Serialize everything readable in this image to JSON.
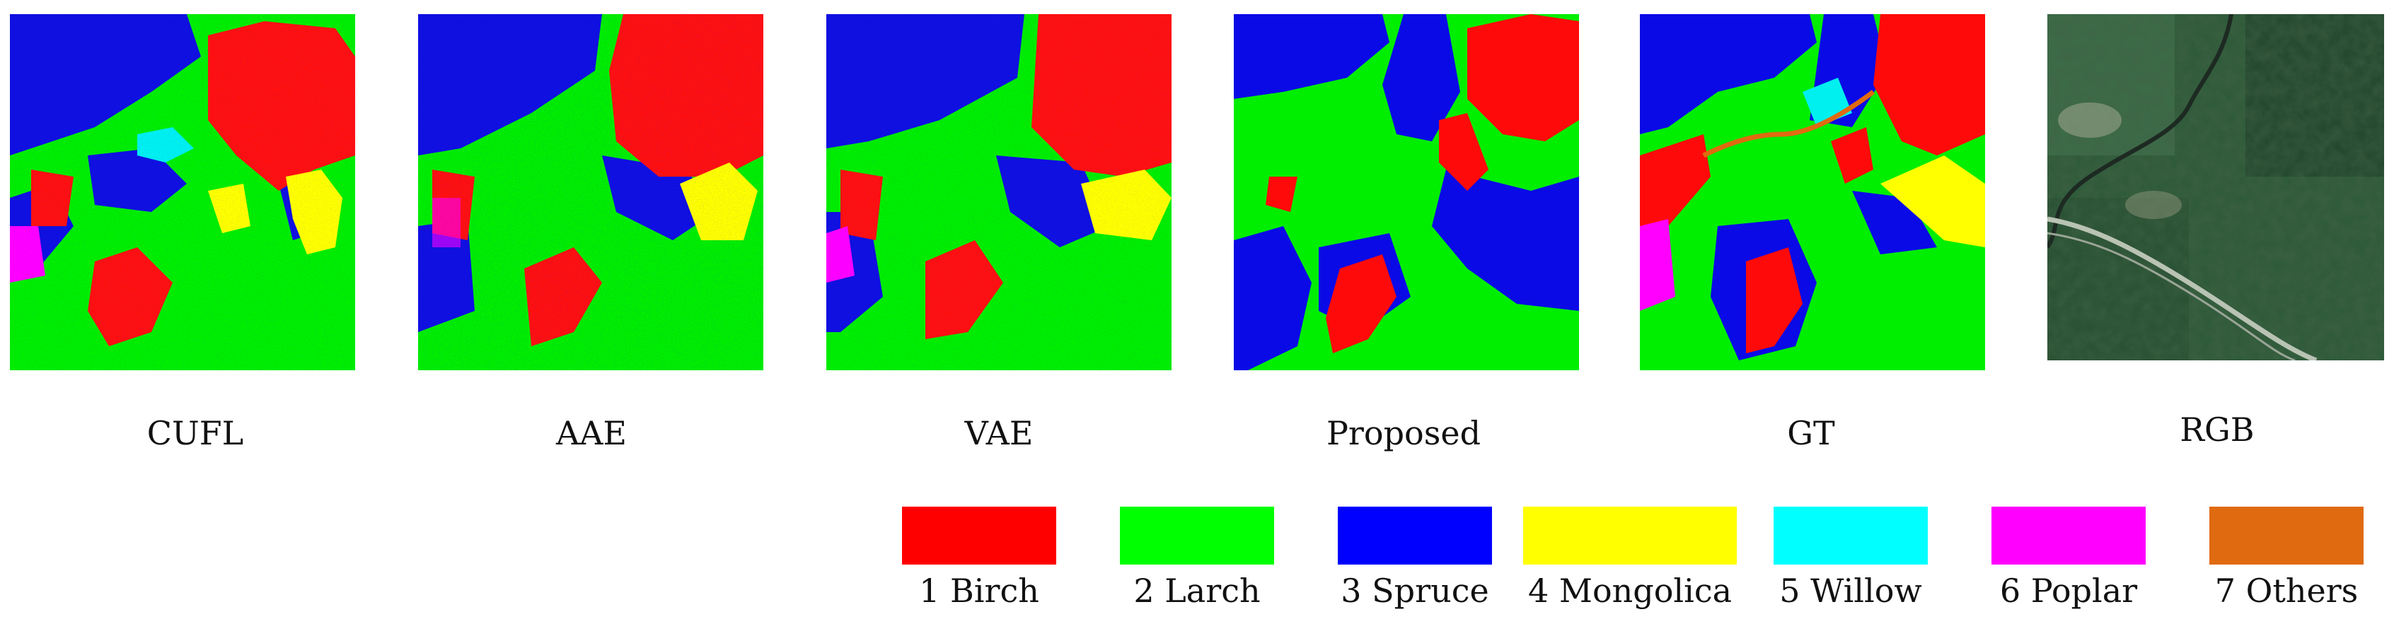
{
  "captions": [
    "CUFL",
    "AAE",
    "VAE",
    "Proposed",
    "GT",
    "RGB"
  ],
  "legend": [
    {
      "label": "1 Birch",
      "color": "#ff0000"
    },
    {
      "label": "2 Larch",
      "color": "#00ff00"
    },
    {
      "label": "3 Spruce",
      "color": "#0000ff"
    },
    {
      "label": "4 Mongolica",
      "color": "#ffff00"
    },
    {
      "label": "5 Willow",
      "color": "#00ffff"
    },
    {
      "label": "6 Poplar",
      "color": "#ff00ff"
    },
    {
      "label": "7 Others",
      "color": "#e06a10"
    }
  ]
}
